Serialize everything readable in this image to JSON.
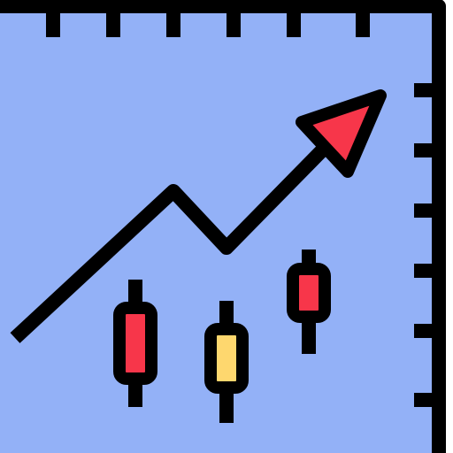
{
  "icon": {
    "name": "trending-up-candlestick-chart-icon",
    "colors": {
      "panel": "#93b1f7",
      "outline": "#000000",
      "arrow_head": "#f7364a",
      "candle_bearish": "#f7364a",
      "candle_neutral": "#fed76e"
    },
    "parts": [
      "chart-panel",
      "top-ruler-ticks",
      "right-ruler-ticks",
      "trend-arrow-line",
      "trend-arrow-head",
      "candlestick-left",
      "candlestick-middle",
      "candlestick-right"
    ]
  }
}
